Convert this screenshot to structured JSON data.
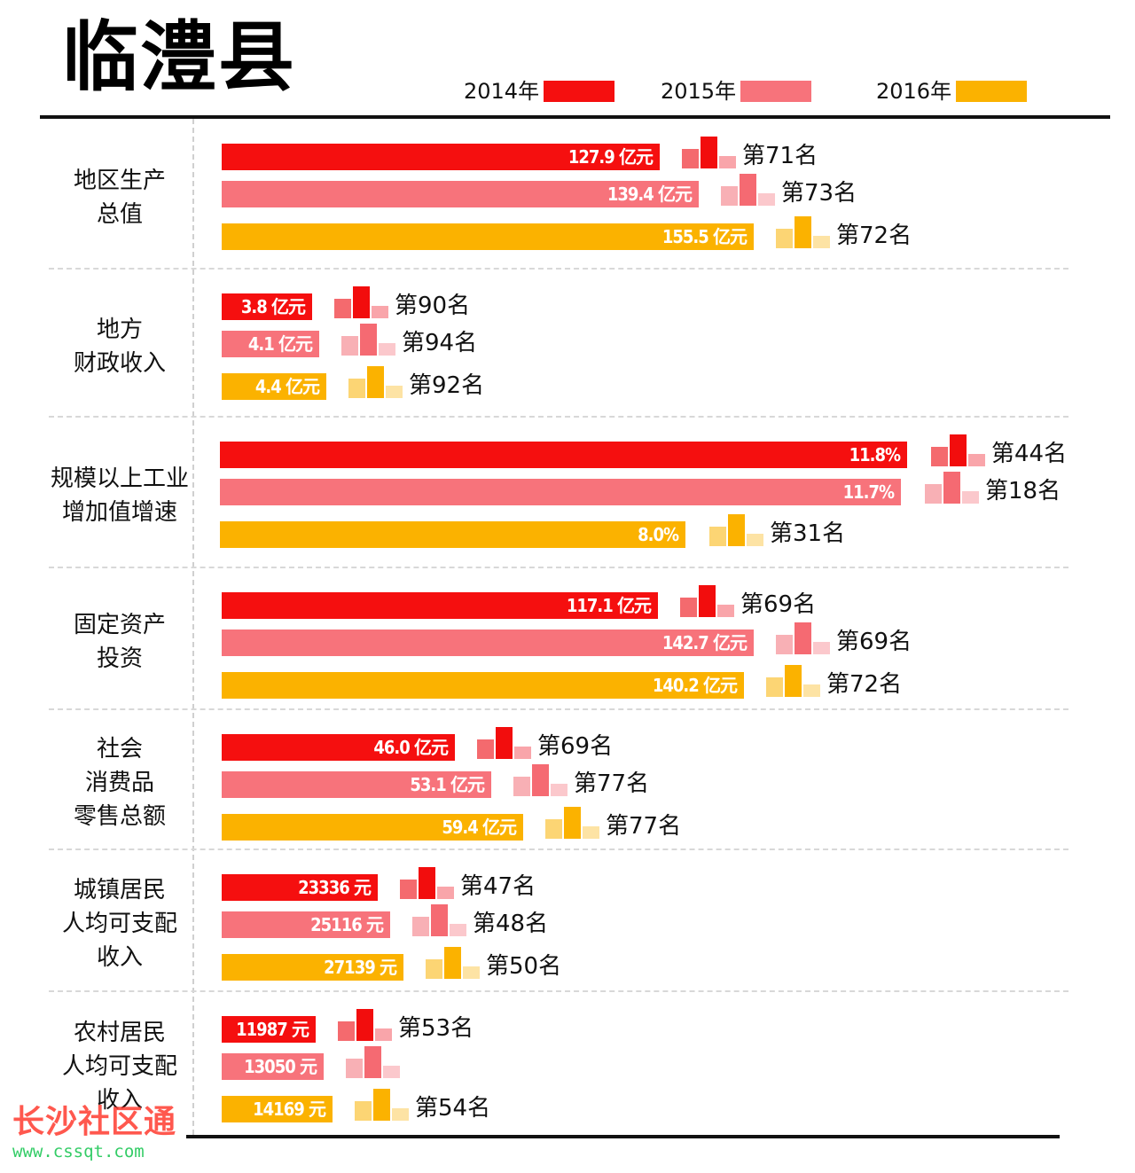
{
  "title": "临澧县",
  "legend": [
    {
      "label": "2014年",
      "color": "#f50f0f"
    },
    {
      "label": "2015年",
      "color": "#f7737b"
    },
    {
      "label": "2016年",
      "color": "#fbb200"
    }
  ],
  "icon_palettes": [
    [
      "#f46a6e",
      "#f20d0d",
      "#f9a5aa"
    ],
    [
      "#f8b0b5",
      "#f56a72",
      "#fbc8cc"
    ],
    [
      "#fcd574",
      "#fbb200",
      "#fde3a4"
    ]
  ],
  "chart_data": {
    "type": "bar",
    "orientation": "horizontal",
    "series_names": [
      "2014年",
      "2015年",
      "2016年"
    ],
    "categories": [
      {
        "label": "地区生产\n总值",
        "rows": [
          {
            "value": 127.9,
            "display": "127.9 亿元",
            "rank": "第71名"
          },
          {
            "value": 139.4,
            "display": "139.4 亿元",
            "rank": "第73名"
          },
          {
            "value": 155.5,
            "display": "155.5 亿元",
            "rank": "第72名"
          }
        ]
      },
      {
        "label": "地方\n财政收入",
        "rows": [
          {
            "value": 3.8,
            "display": "3.8 亿元",
            "rank": "第90名"
          },
          {
            "value": 4.1,
            "display": "4.1 亿元",
            "rank": "第94名"
          },
          {
            "value": 4.4,
            "display": "4.4 亿元",
            "rank": "第92名"
          }
        ]
      },
      {
        "label": "规模以上工业\n增加值增速",
        "rows": [
          {
            "value": 11.8,
            "display": "11.8%",
            "rank": "第44名"
          },
          {
            "value": 11.7,
            "display": "11.7%",
            "rank": "第18名"
          },
          {
            "value": 8.0,
            "display": "8.0%",
            "rank": "第31名"
          }
        ]
      },
      {
        "label": "固定资产\n投资",
        "rows": [
          {
            "value": 117.1,
            "display": "117.1 亿元",
            "rank": "第69名"
          },
          {
            "value": 142.7,
            "display": "142.7 亿元",
            "rank": "第69名"
          },
          {
            "value": 140.2,
            "display": "140.2 亿元",
            "rank": "第72名"
          }
        ]
      },
      {
        "label": "社会\n消费品\n零售总额",
        "rows": [
          {
            "value": 46.0,
            "display": "46.0 亿元",
            "rank": "第69名"
          },
          {
            "value": 53.1,
            "display": "53.1 亿元",
            "rank": "第77名"
          },
          {
            "value": 59.4,
            "display": "59.4 亿元",
            "rank": "第77名"
          }
        ]
      },
      {
        "label": "城镇居民\n人均可支配\n收入",
        "rows": [
          {
            "value": 23336,
            "display": "23336 元",
            "rank": "第47名"
          },
          {
            "value": 25116,
            "display": "25116 元",
            "rank": "第48名"
          },
          {
            "value": 27139,
            "display": "27139 元",
            "rank": "第50名"
          }
        ]
      },
      {
        "label": "农村居民\n人均可支配\n收入",
        "rows": [
          {
            "value": 11987,
            "display": "11987 元",
            "rank": "第53名"
          },
          {
            "value": 13050,
            "display": "13050 元",
            "rank": ""
          },
          {
            "value": 14169,
            "display": "14169 元",
            "rank": "第54名"
          }
        ]
      }
    ]
  },
  "watermark": {
    "name": "长沙社区通",
    "url": "www.cssqt.com"
  }
}
